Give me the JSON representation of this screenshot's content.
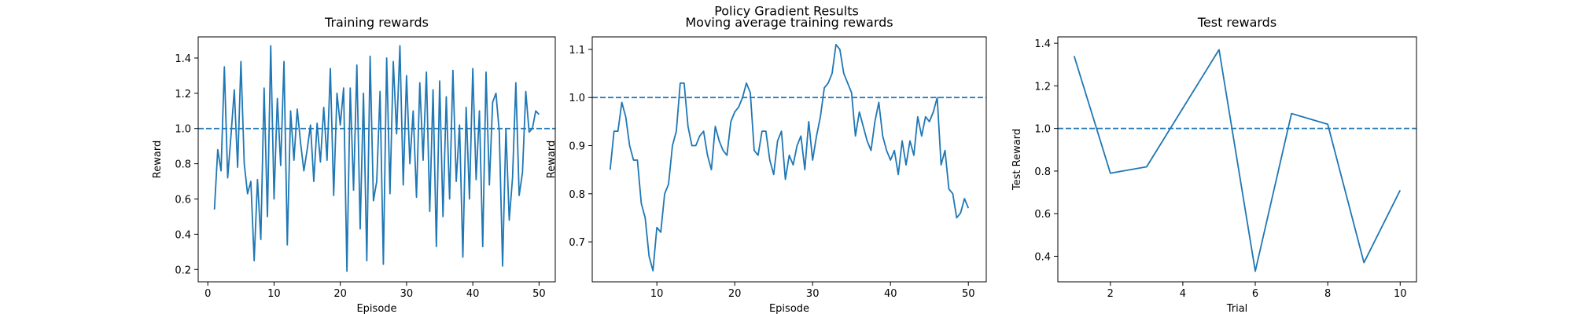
{
  "title": "Policy Gradient Results",
  "chart_data": [
    {
      "type": "line",
      "title": "Training rewards",
      "xlabel": "Episode",
      "ylabel": "Reward",
      "xlim": [
        -1.45,
        52.45
      ],
      "ylim": [
        0.13,
        1.52
      ],
      "xticks": [
        0,
        10,
        20,
        30,
        40,
        50
      ],
      "yticks": [
        0.2,
        0.4,
        0.6,
        0.8,
        {
          "value": 1,
          "label": "1.0"
        },
        1.2,
        1.4
      ],
      "hline": 1.0,
      "color": "#1f77b4",
      "x": [
        1,
        1.5,
        2,
        2.5,
        3,
        3.5,
        4,
        4.5,
        5,
        5.5,
        6,
        6.5,
        7,
        7.5,
        8,
        8.5,
        9,
        9.5,
        10,
        10.5,
        11,
        11.5,
        12,
        12.5,
        13,
        13.5,
        14,
        14.5,
        15,
        15.5,
        16,
        16.5,
        17,
        17.5,
        18,
        18.5,
        19,
        19.5,
        20,
        20.5,
        21,
        21.5,
        22,
        22.5,
        23,
        23.5,
        24,
        24.5,
        25,
        25.5,
        26,
        26.5,
        27,
        27.5,
        28,
        28.5,
        29,
        29.5,
        30,
        30.5,
        31,
        31.5,
        32,
        32.5,
        33,
        33.5,
        34,
        34.5,
        35,
        35.5,
        36,
        36.5,
        37,
        37.5,
        38,
        38.5,
        39,
        39.5,
        40,
        40.5,
        41,
        41.5,
        42,
        42.5,
        43,
        43.5,
        44,
        44.5,
        45,
        45.5,
        46,
        46.5,
        47,
        47.5,
        48,
        48.5,
        49,
        49.5,
        50
      ],
      "values": [
        0.54,
        0.88,
        0.76,
        1.35,
        0.72,
        0.96,
        1.22,
        0.78,
        1.38,
        0.8,
        0.63,
        0.7,
        0.25,
        0.71,
        0.37,
        1.23,
        0.5,
        1.47,
        0.6,
        1.17,
        0.79,
        1.38,
        0.34,
        1.1,
        0.82,
        1.11,
        0.92,
        0.76,
        0.88,
        1.02,
        0.7,
        1.03,
        0.81,
        1.12,
        0.82,
        1.34,
        0.62,
        1.2,
        1.02,
        1.23,
        0.19,
        1.23,
        0.65,
        1.36,
        0.43,
        1.2,
        0.25,
        1.41,
        0.59,
        0.7,
        1.21,
        0.23,
        1.4,
        0.63,
        1.38,
        0.97,
        1.47,
        0.68,
        1.3,
        0.8,
        1.1,
        0.61,
        1.26,
        0.82,
        1.32,
        0.53,
        1.22,
        0.33,
        1.27,
        0.5,
        1.18,
        0.6,
        1.33,
        0.7,
        1.02,
        0.27,
        1.12,
        0.6,
        1.34,
        0.71,
        1.1,
        0.33,
        1.32,
        0.68,
        1.15,
        1.2,
        0.98,
        0.22,
        1.0,
        0.48,
        0.72,
        1.26,
        0.62,
        0.75,
        1.21,
        0.98,
        1.0,
        1.1,
        1.08
      ]
    },
    {
      "type": "line",
      "title": "Moving average training rewards",
      "xlabel": "Episode",
      "ylabel": "Reward",
      "xlim": [
        1.7,
        52.3
      ],
      "ylim": [
        0.617,
        1.126
      ],
      "xticks": [
        10,
        20,
        30,
        40,
        50
      ],
      "yticks": [
        0.7,
        0.8,
        0.9,
        {
          "value": 1,
          "label": "1.0"
        },
        1.1
      ],
      "hline": 1.0,
      "color": "#1f77b4",
      "x": [
        4,
        4.5,
        5,
        5.5,
        6,
        6.5,
        7,
        7.5,
        8,
        8.5,
        9,
        9.5,
        10,
        10.5,
        11,
        11.5,
        12,
        12.5,
        13,
        13.5,
        14,
        14.5,
        15,
        15.5,
        16,
        16.5,
        17,
        17.5,
        18,
        18.5,
        19,
        19.5,
        20,
        20.5,
        21,
        21.5,
        22,
        22.5,
        23,
        23.5,
        24,
        24.5,
        25,
        25.5,
        26,
        26.5,
        27,
        27.5,
        28,
        28.5,
        29,
        29.5,
        30,
        30.5,
        31,
        31.5,
        32,
        32.5,
        33,
        33.5,
        34,
        34.5,
        35,
        35.5,
        36,
        36.5,
        37,
        37.5,
        38,
        38.5,
        39,
        39.5,
        40,
        40.5,
        41,
        41.5,
        42,
        42.5,
        43,
        43.5,
        44,
        44.5,
        45,
        45.5,
        46,
        46.5,
        47,
        47.5,
        48,
        48.5,
        49,
        49.5,
        50
      ],
      "values": [
        0.85,
        0.93,
        0.93,
        0.99,
        0.96,
        0.9,
        0.87,
        0.87,
        0.78,
        0.75,
        0.67,
        0.64,
        0.73,
        0.72,
        0.8,
        0.82,
        0.9,
        0.93,
        1.03,
        1.03,
        0.94,
        0.9,
        0.9,
        0.92,
        0.93,
        0.88,
        0.85,
        0.94,
        0.91,
        0.89,
        0.88,
        0.95,
        0.97,
        0.98,
        1.0,
        1.03,
        1.01,
        0.89,
        0.88,
        0.93,
        0.93,
        0.87,
        0.84,
        0.91,
        0.93,
        0.83,
        0.88,
        0.86,
        0.9,
        0.92,
        0.85,
        0.95,
        0.87,
        0.92,
        0.96,
        1.02,
        1.03,
        1.05,
        1.11,
        1.1,
        1.05,
        1.03,
        1.01,
        0.92,
        0.97,
        0.94,
        0.91,
        0.89,
        0.95,
        0.99,
        0.92,
        0.89,
        0.87,
        0.89,
        0.84,
        0.91,
        0.86,
        0.91,
        0.88,
        0.96,
        0.92,
        0.96,
        0.95,
        0.97,
        1.0,
        0.86,
        0.89,
        0.81,
        0.8,
        0.75,
        0.76,
        0.79,
        0.77
      ]
    },
    {
      "type": "line",
      "title": "Test rewards",
      "xlabel": "Trial",
      "ylabel": "Test Reward",
      "xlim": [
        0.55,
        10.45
      ],
      "ylim": [
        0.28,
        1.43
      ],
      "xticks": [
        2,
        4,
        6,
        8,
        10
      ],
      "yticks": [
        0.4,
        0.6,
        0.8,
        {
          "value": 1,
          "label": "1.0"
        },
        1.2,
        1.4
      ],
      "hline": 1.0,
      "color": "#1f77b4",
      "x": [
        1,
        2,
        3,
        4,
        5,
        6,
        7,
        8,
        9,
        10
      ],
      "values": [
        1.34,
        0.79,
        0.82,
        1.095,
        1.37,
        0.33,
        1.07,
        1.02,
        0.37,
        0.71
      ]
    }
  ]
}
